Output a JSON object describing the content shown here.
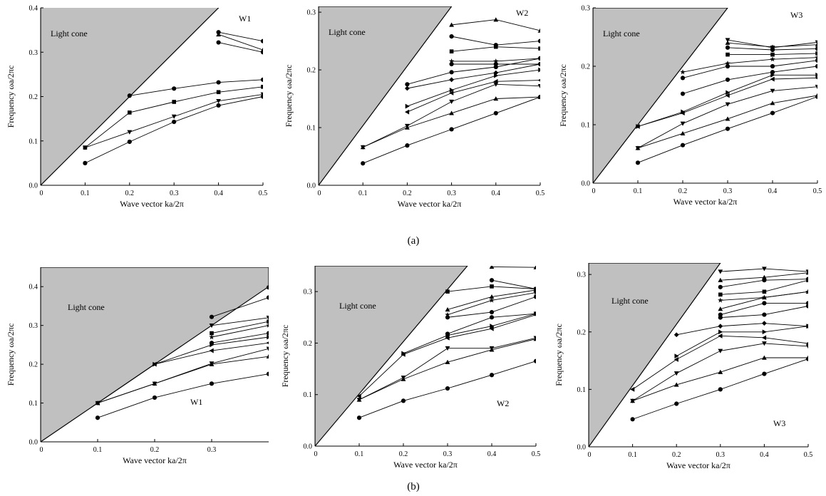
{
  "captions": {
    "row_a": "(a)",
    "row_b": "(b)"
  },
  "colors": {
    "cone_fill": "#c0c0c0",
    "line": "#000000",
    "marker": "#000000"
  },
  "chart_data": [
    {
      "id": "a-w1",
      "type": "line",
      "name_label": "W1",
      "cone_label": "Light cone",
      "xlabel": "Wave vector ka/2π",
      "ylabel": "Frequency ωa/2πc",
      "xlim": [
        0,
        0.5
      ],
      "ylim": [
        0,
        0.4
      ],
      "xticks": [
        "0",
        "0.1",
        "0.2",
        "0.3",
        "0.4",
        "0.5"
      ],
      "xtick_values": [
        0,
        0.1,
        0.2,
        0.3,
        0.4,
        0.5
      ],
      "yticks": [
        "0.0",
        "0.1",
        "0.2",
        "0.3",
        "0.4"
      ],
      "ytick_values": [
        0,
        0.1,
        0.2,
        0.3,
        0.4
      ],
      "light_cone": [
        [
          0,
          0
        ],
        [
          0.4,
          0.4
        ],
        [
          0.4,
          0.405
        ],
        [
          0,
          0.405
        ]
      ],
      "x": [
        0.1,
        0.2,
        0.3,
        0.4,
        0.5
      ],
      "series": [
        {
          "marker": "circle",
          "values": [
            0.05,
            0.098,
            0.143,
            0.18,
            0.2
          ]
        },
        {
          "marker": "triangle-down",
          "values": [
            0.085,
            0.12,
            0.155,
            0.19,
            0.205
          ]
        },
        {
          "marker": "square",
          "values": [
            0.085,
            0.164,
            0.188,
            0.21,
            0.222
          ]
        },
        {
          "marker": "circle",
          "values": [
            null,
            0.202,
            0.218,
            0.232,
            0.238
          ]
        },
        {
          "marker": "circle",
          "values": [
            null,
            null,
            null,
            0.322,
            0.3
          ]
        },
        {
          "marker": "triangle",
          "values": [
            null,
            null,
            null,
            0.34,
            0.305
          ]
        },
        {
          "marker": "circle",
          "values": [
            null,
            null,
            null,
            0.345,
            0.325
          ]
        }
      ]
    },
    {
      "id": "a-w2",
      "type": "line",
      "name_label": "W2",
      "cone_label": "Light cone",
      "xlabel": "Wave vector ka/2π",
      "ylabel": "Frequency ωa/2πc",
      "xlim": [
        0,
        0.5
      ],
      "ylim": [
        0,
        0.31
      ],
      "xticks": [
        "0",
        "0.1",
        "0.2",
        "0.3",
        "0.4",
        "0.5"
      ],
      "xtick_values": [
        0,
        0.1,
        0.2,
        0.3,
        0.4,
        0.5
      ],
      "yticks": [
        "0.0",
        "0.1",
        "0.2",
        "0.3"
      ],
      "ytick_values": [
        0,
        0.1,
        0.2,
        0.3
      ],
      "light_cone": [
        [
          0,
          0
        ],
        [
          0.3,
          0.31
        ],
        [
          0,
          0.31
        ]
      ],
      "x": [
        0.1,
        0.2,
        0.3,
        0.4,
        0.5
      ],
      "series": [
        {
          "marker": "circle",
          "values": [
            0.038,
            0.069,
            0.097,
            0.125,
            0.153
          ]
        },
        {
          "marker": "triangle",
          "values": [
            0.066,
            0.1,
            0.125,
            0.15,
            0.153
          ]
        },
        {
          "marker": "triangle-down",
          "values": [
            0.066,
            0.103,
            0.145,
            0.175,
            0.172
          ]
        },
        {
          "marker": "triangle-left",
          "values": [
            null,
            0.127,
            0.16,
            0.18,
            0.182
          ]
        },
        {
          "marker": "triangle-right",
          "values": [
            null,
            0.137,
            0.165,
            0.19,
            0.2
          ]
        },
        {
          "marker": "diamond",
          "values": [
            null,
            0.168,
            0.183,
            0.195,
            0.21
          ]
        },
        {
          "marker": "circle",
          "values": [
            null,
            0.175,
            0.196,
            0.205,
            0.22
          ]
        },
        {
          "marker": "circle",
          "values": [
            null,
            null,
            0.21,
            0.21,
            0.21
          ]
        },
        {
          "marker": "star",
          "values": [
            null,
            null,
            0.215,
            0.215,
            0.22
          ]
        },
        {
          "marker": "square",
          "values": [
            null,
            null,
            0.232,
            0.24,
            0.237
          ]
        },
        {
          "marker": "circle",
          "values": [
            null,
            null,
            0.258,
            0.243,
            0.25
          ]
        },
        {
          "marker": "triangle",
          "values": [
            null,
            null,
            0.278,
            0.287,
            0.268
          ]
        }
      ]
    },
    {
      "id": "a-w3",
      "type": "line",
      "name_label": "W3",
      "cone_label": "Light cone",
      "xlabel": "Wave vector ka/2π",
      "ylabel": "Frequency ωa/2πc",
      "xlim": [
        0,
        0.5
      ],
      "ylim": [
        0,
        0.3
      ],
      "xticks": [
        "0",
        "0.1",
        "0.2",
        "0.3",
        "0.4",
        "0.5"
      ],
      "xtick_values": [
        0,
        0.1,
        0.2,
        0.3,
        0.4,
        0.5
      ],
      "yticks": [
        "0.0",
        "0.1",
        "0.2",
        "0.3"
      ],
      "ytick_values": [
        0,
        0.1,
        0.2,
        0.3
      ],
      "light_cone": [
        [
          0,
          0
        ],
        [
          0.3,
          0.3
        ],
        [
          0,
          0.3
        ]
      ],
      "x": [
        0.1,
        0.2,
        0.3,
        0.4,
        0.5
      ],
      "series": [
        {
          "marker": "circle",
          "values": [
            0.035,
            0.065,
            0.093,
            0.12,
            0.148
          ]
        },
        {
          "marker": "triangle",
          "values": [
            0.06,
            0.085,
            0.11,
            0.137,
            0.15
          ]
        },
        {
          "marker": "triangle-down",
          "values": [
            0.06,
            0.102,
            0.135,
            0.158,
            0.165
          ]
        },
        {
          "marker": "triangle-left",
          "values": [
            0.097,
            0.12,
            0.15,
            0.178,
            0.18
          ]
        },
        {
          "marker": "triangle-right",
          "values": [
            0.097,
            0.122,
            0.155,
            0.185,
            0.185
          ]
        },
        {
          "marker": "circle",
          "values": [
            null,
            0.153,
            0.177,
            0.19,
            0.2
          ]
        },
        {
          "marker": "circle",
          "values": [
            null,
            0.18,
            0.2,
            0.2,
            0.21
          ]
        },
        {
          "marker": "star",
          "values": [
            null,
            0.19,
            0.205,
            0.212,
            0.215
          ]
        },
        {
          "marker": "square",
          "values": [
            null,
            null,
            0.22,
            0.22,
            0.222
          ]
        },
        {
          "marker": "circle",
          "values": [
            null,
            null,
            0.232,
            0.228,
            0.23
          ]
        },
        {
          "marker": "triangle",
          "values": [
            null,
            null,
            0.24,
            0.233,
            0.237
          ]
        },
        {
          "marker": "triangle-down",
          "values": [
            null,
            null,
            0.245,
            0.232,
            0.241
          ]
        }
      ]
    },
    {
      "id": "b-w1",
      "type": "line",
      "name_label": "W1",
      "cone_label": "Light cone",
      "xlabel": "Wave vector ka/2π",
      "ylabel": "Frequency ωa/2πc",
      "xlim": [
        0,
        0.4
      ],
      "ylim": [
        0,
        0.45
      ],
      "xticks": [
        "0",
        "0.1",
        "0.2",
        "0.3"
      ],
      "xtick_values": [
        0,
        0.1,
        0.2,
        0.3
      ],
      "yticks": [
        "0.0",
        "0.1",
        "0.2",
        "0.3",
        "0.4"
      ],
      "ytick_values": [
        0,
        0.1,
        0.2,
        0.3,
        0.4
      ],
      "light_cone": [
        [
          0,
          0
        ],
        [
          0.4,
          0.4
        ],
        [
          0.4,
          0.45
        ],
        [
          0,
          0.45
        ]
      ],
      "x": [
        0.1,
        0.2,
        0.3,
        0.4
      ],
      "series": [
        {
          "marker": "circle",
          "values": [
            0.062,
            0.114,
            0.15,
            0.175
          ]
        },
        {
          "marker": "triangle",
          "values": [
            0.1,
            0.15,
            0.2,
            0.22
          ]
        },
        {
          "marker": "triangle-down",
          "values": [
            0.1,
            0.15,
            0.202,
            0.24
          ]
        },
        {
          "marker": "triangle-left",
          "values": [
            0.1,
            0.2,
            0.235,
            0.255
          ]
        },
        {
          "marker": "triangle-right",
          "values": [
            null,
            0.2,
            0.25,
            0.27
          ]
        },
        {
          "marker": "circle",
          "values": [
            null,
            null,
            0.255,
            0.28
          ]
        },
        {
          "marker": "star",
          "values": [
            null,
            null,
            0.27,
            0.3
          ]
        },
        {
          "marker": "square",
          "values": [
            null,
            null,
            0.28,
            0.31
          ]
        },
        {
          "marker": "triangle-down",
          "values": [
            null,
            null,
            0.3,
            0.32
          ]
        },
        {
          "marker": "circle",
          "values": [
            null,
            null,
            0.322,
            0.372
          ]
        },
        {
          "marker": "circle",
          "values": [
            null,
            null,
            null,
            0.398
          ]
        }
      ]
    },
    {
      "id": "b-w2",
      "type": "line",
      "name_label": "W2",
      "cone_label": "Light cone",
      "xlabel": "Wave vector ka/2π",
      "ylabel": "Frequency ωa/2πc",
      "xlim": [
        0,
        0.5
      ],
      "ylim": [
        0,
        0.35
      ],
      "xticks": [
        "0",
        "0.1",
        "0.2",
        "0.3",
        "0.4",
        "0.5"
      ],
      "xtick_values": [
        0,
        0.1,
        0.2,
        0.3,
        0.4,
        0.5
      ],
      "yticks": [
        "0.0",
        "0.1",
        "0.2",
        "0.3"
      ],
      "ytick_values": [
        0,
        0.1,
        0.2,
        0.3
      ],
      "light_cone": [
        [
          0,
          0
        ],
        [
          0.345,
          0.35
        ],
        [
          0,
          0.35
        ]
      ],
      "x": [
        0.1,
        0.2,
        0.3,
        0.4,
        0.5
      ],
      "series": [
        {
          "marker": "circle",
          "values": [
            0.055,
            0.088,
            0.112,
            0.138,
            0.165
          ]
        },
        {
          "marker": "triangle",
          "values": [
            0.09,
            0.13,
            0.163,
            0.187,
            0.208
          ]
        },
        {
          "marker": "triangle-down",
          "values": [
            0.09,
            0.133,
            0.19,
            0.19,
            0.21
          ]
        },
        {
          "marker": "triangle-left",
          "values": [
            0.097,
            0.178,
            0.21,
            0.228,
            0.255
          ]
        },
        {
          "marker": "triangle-right",
          "values": [
            null,
            0.18,
            0.215,
            0.233,
            0.257
          ]
        },
        {
          "marker": "circle",
          "values": [
            null,
            null,
            0.218,
            0.25,
            0.257
          ]
        },
        {
          "marker": "circle",
          "values": [
            null,
            null,
            0.25,
            0.26,
            0.29
          ]
        },
        {
          "marker": "star",
          "values": [
            null,
            null,
            0.255,
            0.283,
            0.298
          ]
        },
        {
          "marker": "triangle",
          "values": [
            null,
            null,
            0.265,
            0.29,
            0.303
          ]
        },
        {
          "marker": "square",
          "values": [
            null,
            null,
            0.3,
            0.31,
            0.305
          ]
        },
        {
          "marker": "circle",
          "values": [
            null,
            null,
            null,
            0.322,
            0.305
          ]
        },
        {
          "marker": "triangle",
          "values": [
            null,
            null,
            null,
            0.348,
            0.347
          ]
        }
      ]
    },
    {
      "id": "b-w3",
      "type": "line",
      "name_label": "W3",
      "cone_label": "Light cone",
      "xlabel": "Wave vector ka/2π",
      "ylabel": "Frequency ωa/2πc",
      "xlim": [
        0,
        0.5
      ],
      "ylim": [
        0,
        0.32
      ],
      "xticks": [
        "0",
        "0.1",
        "0.2",
        "0.3",
        "0.4",
        "0.5"
      ],
      "xtick_values": [
        0,
        0.1,
        0.2,
        0.3,
        0.4,
        0.5
      ],
      "yticks": [
        "0.0",
        "0.1",
        "0.2",
        "0.3"
      ],
      "ytick_values": [
        0,
        0.1,
        0.2,
        0.3
      ],
      "light_cone": [
        [
          0,
          0
        ],
        [
          0.3,
          0.32
        ],
        [
          0,
          0.32
        ]
      ],
      "x": [
        0.1,
        0.2,
        0.3,
        0.4,
        0.5
      ],
      "series": [
        {
          "marker": "circle",
          "values": [
            0.048,
            0.075,
            0.1,
            0.127,
            0.153
          ]
        },
        {
          "marker": "triangle",
          "values": [
            0.08,
            0.108,
            0.13,
            0.155,
            0.155
          ]
        },
        {
          "marker": "triangle-down",
          "values": [
            0.08,
            0.128,
            0.167,
            0.18,
            0.175
          ]
        },
        {
          "marker": "triangle-left",
          "values": [
            0.1,
            0.152,
            0.193,
            0.19,
            0.18
          ]
        },
        {
          "marker": "triangle-right",
          "values": [
            null,
            0.158,
            0.2,
            0.2,
            0.21
          ]
        },
        {
          "marker": "diamond",
          "values": [
            null,
            0.195,
            0.21,
            0.215,
            0.21
          ]
        },
        {
          "marker": "circle",
          "values": [
            null,
            null,
            0.225,
            0.23,
            0.245
          ]
        },
        {
          "marker": "circle",
          "values": [
            null,
            null,
            0.23,
            0.25,
            0.25
          ]
        },
        {
          "marker": "triangle",
          "values": [
            null,
            null,
            0.24,
            0.26,
            0.27
          ]
        },
        {
          "marker": "star",
          "values": [
            null,
            null,
            0.255,
            0.26,
            0.27
          ]
        },
        {
          "marker": "square",
          "values": [
            null,
            null,
            0.265,
            0.27,
            0.29
          ]
        },
        {
          "marker": "circle",
          "values": [
            null,
            null,
            0.278,
            0.29,
            0.292
          ]
        },
        {
          "marker": "triangle",
          "values": [
            null,
            null,
            0.29,
            0.295,
            0.303
          ]
        },
        {
          "marker": "triangle-down",
          "values": [
            null,
            null,
            0.305,
            0.31,
            0.305
          ]
        }
      ]
    }
  ]
}
